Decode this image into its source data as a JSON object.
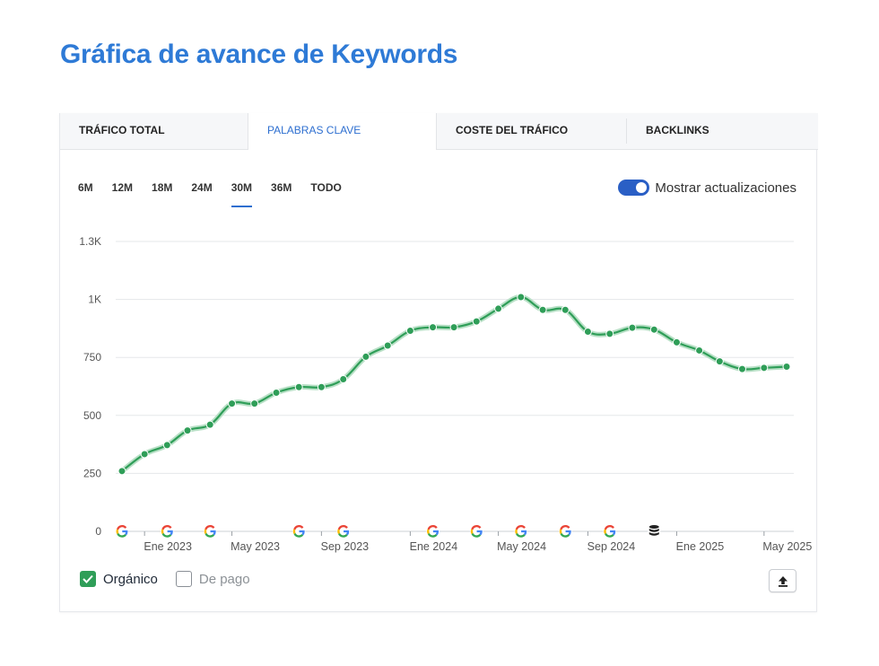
{
  "page": {
    "title": "Gráfica de avance de Keywords"
  },
  "tabs": [
    {
      "label": "TRÁFICO TOTAL",
      "active": false
    },
    {
      "label": "PALABRAS CLAVE",
      "active": true
    },
    {
      "label": "COSTE DEL TRÁFICO",
      "active": false
    },
    {
      "label": "BACKLINKS",
      "active": false
    }
  ],
  "ranges": [
    "6M",
    "12M",
    "18M",
    "24M",
    "30M",
    "36M",
    "TODO"
  ],
  "selected_range": "30M",
  "toggle": {
    "label": "Mostrar actualizaciones",
    "on": true
  },
  "legend": [
    {
      "label": "Orgánico",
      "checked": true
    },
    {
      "label": "De pago",
      "checked": false
    }
  ],
  "colors": {
    "accent": "#2e7ad6",
    "series": "#2f9e58",
    "grid": "#e5e7ea"
  },
  "icons": {
    "update_marker": "google-g-icon",
    "database_marker": "database-icon",
    "export": "upload-arrow-icon"
  },
  "chart_data": {
    "type": "line",
    "y_ticks": [
      {
        "value": 0,
        "label": "0"
      },
      {
        "value": 250,
        "label": "250"
      },
      {
        "value": 500,
        "label": "500"
      },
      {
        "value": 750,
        "label": "750"
      },
      {
        "value": 1000,
        "label": "1K"
      },
      {
        "value": 1250,
        "label": "1.3K"
      }
    ],
    "ylim": [
      0,
      1250
    ],
    "x_range": [
      "2022-12-01",
      "2025-06-01"
    ],
    "x_ticks": [
      {
        "date": "2023-01-01",
        "label": "Ene 2023"
      },
      {
        "date": "2023-05-01",
        "label": "May 2023"
      },
      {
        "date": "2023-09-01",
        "label": "Sep 2023"
      },
      {
        "date": "2024-01-01",
        "label": "Ene 2024"
      },
      {
        "date": "2024-05-01",
        "label": "May 2024"
      },
      {
        "date": "2024-09-01",
        "label": "Sep 2024"
      },
      {
        "date": "2025-01-01",
        "label": "Ene 2025"
      },
      {
        "date": "2025-05-01",
        "label": "May 2025"
      }
    ],
    "grid": true,
    "series": [
      {
        "name": "Orgánico",
        "color": "#2f9e58",
        "points": [
          {
            "x": "2022-12-01",
            "y": 260
          },
          {
            "x": "2023-01-01",
            "y": 333
          },
          {
            "x": "2023-02-01",
            "y": 372
          },
          {
            "x": "2023-03-01",
            "y": 435
          },
          {
            "x": "2023-04-01",
            "y": 460
          },
          {
            "x": "2023-05-01",
            "y": 551
          },
          {
            "x": "2023-06-01",
            "y": 551
          },
          {
            "x": "2023-07-01",
            "y": 598
          },
          {
            "x": "2023-08-01",
            "y": 622
          },
          {
            "x": "2023-09-01",
            "y": 622
          },
          {
            "x": "2023-10-01",
            "y": 656
          },
          {
            "x": "2023-11-01",
            "y": 753
          },
          {
            "x": "2023-12-01",
            "y": 801
          },
          {
            "x": "2024-01-01",
            "y": 865
          },
          {
            "x": "2024-02-01",
            "y": 880
          },
          {
            "x": "2024-03-01",
            "y": 880
          },
          {
            "x": "2024-04-01",
            "y": 905
          },
          {
            "x": "2024-05-01",
            "y": 960
          },
          {
            "x": "2024-06-01",
            "y": 1010
          },
          {
            "x": "2024-07-01",
            "y": 955
          },
          {
            "x": "2024-08-01",
            "y": 955
          },
          {
            "x": "2024-09-01",
            "y": 861
          },
          {
            "x": "2024-10-01",
            "y": 852
          },
          {
            "x": "2024-11-01",
            "y": 878
          },
          {
            "x": "2024-12-01",
            "y": 870
          },
          {
            "x": "2025-01-01",
            "y": 815
          },
          {
            "x": "2025-02-01",
            "y": 780
          },
          {
            "x": "2025-03-01",
            "y": 733
          },
          {
            "x": "2025-04-01",
            "y": 700
          },
          {
            "x": "2025-05-01",
            "y": 705
          },
          {
            "x": "2025-06-01",
            "y": 710
          }
        ]
      }
    ],
    "annotations": [
      {
        "x": "2022-12-01",
        "icon": "google-g-icon"
      },
      {
        "x": "2023-02-01",
        "icon": "google-g-icon"
      },
      {
        "x": "2023-04-01",
        "icon": "google-g-icon"
      },
      {
        "x": "2023-08-01",
        "icon": "google-g-icon"
      },
      {
        "x": "2023-10-01",
        "icon": "google-g-icon"
      },
      {
        "x": "2024-02-01",
        "icon": "google-g-icon"
      },
      {
        "x": "2024-04-01",
        "icon": "google-g-icon"
      },
      {
        "x": "2024-06-01",
        "icon": "google-g-icon"
      },
      {
        "x": "2024-08-01",
        "icon": "google-g-icon"
      },
      {
        "x": "2024-10-01",
        "icon": "google-g-icon"
      },
      {
        "x": "2024-12-01",
        "icon": "database-icon"
      }
    ]
  }
}
